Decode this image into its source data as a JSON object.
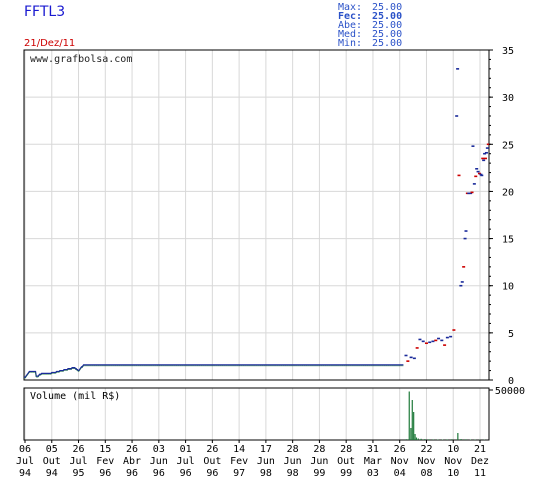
{
  "header": {
    "ticker": "FFTL3",
    "date": "21/Dez/11",
    "stats": [
      {
        "label": "Max:",
        "value": "25.00",
        "bold": false
      },
      {
        "label": "Fec:",
        "value": "25.00",
        "bold": true
      },
      {
        "label": "Abe:",
        "value": "25.00",
        "bold": false
      },
      {
        "label": "Med:",
        "value": "25.00",
        "bold": false
      },
      {
        "label": "Min:",
        "value": "25.00",
        "bold": false
      }
    ]
  },
  "watermark": "www.grafbolsa.com",
  "colors": {
    "price": "#1a2a9a",
    "price_alt": "#1e7a3a",
    "up_tick": "#cc0000",
    "volume": "#1e7a3a",
    "grid": "#d8d8d8"
  },
  "chart_data": [
    {
      "type": "line",
      "title": "",
      "ylim": [
        0,
        35
      ],
      "yticks": [
        "0",
        "5",
        "10",
        "15",
        "20",
        "25",
        "30",
        "35"
      ],
      "x_labels": [
        {
          "day": "06",
          "mon": "Jul",
          "yr": "94"
        },
        {
          "day": "05",
          "mon": "Out",
          "yr": "94"
        },
        {
          "day": "26",
          "mon": "Jul",
          "yr": "95"
        },
        {
          "day": "15",
          "mon": "Fev",
          "yr": "96"
        },
        {
          "day": "26",
          "mon": "Abr",
          "yr": "96"
        },
        {
          "day": "03",
          "mon": "Jun",
          "yr": "96"
        },
        {
          "day": "01",
          "mon": "Jul",
          "yr": "96"
        },
        {
          "day": "26",
          "mon": "Out",
          "yr": "96"
        },
        {
          "day": "14",
          "mon": "Fev",
          "yr": "97"
        },
        {
          "day": "17",
          "mon": "Jun",
          "yr": "98"
        },
        {
          "day": "28",
          "mon": "Jun",
          "yr": "98"
        },
        {
          "day": "28",
          "mon": "Jun",
          "yr": "99"
        },
        {
          "day": "28",
          "mon": "Out",
          "yr": "99"
        },
        {
          "day": "31",
          "mon": "Mar",
          "yr": "03"
        },
        {
          "day": "26",
          "mon": "Nov",
          "yr": "04"
        },
        {
          "day": "22",
          "mon": "Nov",
          "yr": "08"
        },
        {
          "day": "10",
          "mon": "Nov",
          "yr": "10"
        },
        {
          "day": "21",
          "mon": "Dez",
          "yr": "11"
        }
      ],
      "series": [
        {
          "values": [
            0.3,
            0.3,
            0.3,
            0.4,
            0.5,
            0.6,
            0.7,
            0.8,
            0.9,
            0.9,
            0.9,
            0.9,
            0.9,
            0.9,
            0.9,
            0.9,
            0.9,
            0.9,
            0.4,
            0.4,
            0.4,
            0.4,
            0.5,
            0.6,
            0.6,
            0.6,
            0.7,
            0.7,
            0.7,
            0.7,
            0.7,
            0.7,
            0.7,
            0.7,
            0.7,
            0.7,
            0.7,
            0.7,
            0.7,
            0.7,
            0.7,
            0.8,
            0.8,
            0.8,
            0.8,
            0.8,
            0.8,
            0.8,
            0.9,
            0.9,
            0.9,
            0.9,
            0.9,
            1.0,
            1.0,
            1.0,
            1.0,
            1.0,
            1.0,
            1.1,
            1.1,
            1.1,
            1.1,
            1.1,
            1.1,
            1.2,
            1.2,
            1.2,
            1.2,
            1.2,
            1.2,
            1.3,
            1.3,
            1.3,
            1.3,
            1.3,
            1.2,
            1.2,
            1.1,
            1.1,
            1.0,
            1.0,
            1.1,
            1.2,
            1.3,
            1.4,
            1.4,
            1.5,
            1.6,
            1.6,
            1.6,
            1.6,
            1.6,
            1.6,
            1.6,
            1.6,
            1.6,
            1.6,
            1.6,
            1.6,
            1.6,
            1.6,
            1.6,
            1.6,
            1.6,
            1.6,
            1.6,
            1.6,
            1.6,
            1.6,
            1.6,
            1.6,
            1.6,
            1.6,
            1.6,
            1.6,
            1.6,
            1.6,
            1.6,
            1.6,
            1.6,
            1.6,
            1.6,
            1.6,
            1.6,
            1.6,
            1.6,
            1.6,
            1.6,
            1.6,
            1.6,
            1.6,
            1.6,
            1.6,
            1.6,
            1.6,
            1.6,
            1.6,
            1.6,
            1.6,
            1.6,
            1.6,
            1.6,
            1.6,
            1.6,
            1.6,
            1.6,
            1.6,
            1.6,
            1.6,
            1.6,
            1.6,
            1.6,
            1.6,
            1.6,
            1.6,
            1.6,
            1.6,
            1.6,
            1.6,
            1.6,
            1.6,
            1.6,
            1.6,
            1.6,
            1.6,
            1.6,
            1.6,
            1.6,
            1.6,
            1.6,
            1.6,
            1.6,
            1.6,
            1.6,
            1.6,
            1.6,
            1.6,
            1.6,
            1.6,
            1.6,
            1.6,
            1.6,
            1.6,
            1.6,
            1.6,
            1.6,
            1.6,
            1.6,
            1.6,
            1.6,
            1.6,
            1.6,
            1.6,
            1.6,
            1.6,
            1.6,
            1.6,
            1.6,
            1.6,
            1.6,
            1.6,
            1.6,
            1.6,
            1.6,
            1.6,
            1.6,
            1.6,
            1.6,
            1.6,
            1.6,
            1.6,
            1.6,
            1.6,
            1.6,
            1.6,
            1.6,
            1.6,
            1.6,
            1.6,
            1.6,
            1.6,
            1.6,
            1.6,
            1.6,
            1.6,
            1.6,
            1.6,
            1.6,
            1.6,
            1.6,
            1.6,
            1.6,
            1.6,
            1.6,
            1.6,
            1.6,
            1.6,
            1.6,
            1.6,
            1.6,
            1.6,
            1.6,
            1.6,
            1.6,
            1.6,
            1.6,
            1.6,
            1.6,
            1.6,
            1.6,
            1.6,
            1.6,
            1.6,
            1.6,
            1.6,
            1.6,
            1.6,
            1.6,
            1.6,
            1.6,
            1.6,
            1.6,
            1.6,
            1.6,
            1.6,
            1.6,
            1.6,
            1.6,
            1.6,
            1.6,
            1.6,
            1.6,
            1.6,
            1.6,
            1.6,
            1.6,
            1.6,
            1.6,
            1.6,
            1.6,
            1.6,
            1.6,
            1.6,
            1.6,
            1.6,
            1.6,
            1.6,
            1.6,
            1.6,
            1.6,
            1.6,
            1.6,
            1.6,
            1.6,
            1.6,
            1.6,
            1.6,
            1.6,
            1.6,
            1.6,
            1.6,
            1.6,
            1.6,
            1.6,
            1.6,
            1.6,
            1.6,
            1.6,
            1.6,
            1.6,
            1.6,
            1.6,
            1.6,
            1.6,
            1.6,
            1.6,
            1.6,
            1.6,
            1.6,
            1.6,
            1.6,
            1.6,
            1.6,
            1.6,
            1.6,
            1.6,
            1.6,
            1.6,
            1.6,
            1.6,
            1.6,
            1.6,
            1.6,
            1.6,
            1.6,
            1.6,
            1.6,
            1.6,
            1.6,
            1.6,
            1.6,
            1.6,
            1.6,
            1.6,
            1.6,
            1.6,
            1.6,
            1.6,
            1.6,
            1.6,
            1.6,
            1.6,
            1.6,
            1.6,
            1.6,
            1.6,
            1.6,
            1.6,
            1.6,
            1.6,
            1.6,
            1.6,
            1.6,
            1.6,
            1.6,
            1.6,
            1.6,
            1.6,
            1.6,
            1.6,
            1.6,
            1.6,
            1.6,
            1.6,
            1.6,
            1.6,
            1.6,
            1.6,
            1.6,
            1.6,
            1.6,
            1.6,
            1.6,
            1.6,
            1.6,
            1.6,
            1.6,
            1.6,
            1.6,
            1.6,
            1.6,
            1.6,
            1.6,
            1.6,
            1.6,
            1.6,
            1.6,
            1.6,
            1.6,
            1.6,
            1.6,
            1.6,
            1.6,
            1.6,
            1.6,
            1.6,
            1.6,
            1.6,
            1.6,
            1.6,
            1.6,
            1.6,
            1.6,
            1.6,
            1.6,
            1.6,
            1.6,
            1.6,
            1.6,
            1.6,
            1.6,
            1.6,
            1.6,
            1.6,
            1.6,
            1.6,
            1.6,
            1.6,
            1.6,
            1.6,
            1.6,
            1.6,
            1.6,
            1.6,
            1.6,
            1.6,
            1.6,
            1.6,
            1.6,
            1.6,
            1.6,
            1.6,
            1.6,
            1.6,
            1.6,
            1.6,
            1.6,
            1.6,
            1.6,
            1.6,
            1.6,
            1.6,
            1.6,
            1.6,
            1.6,
            1.6,
            1.6,
            1.6,
            1.6,
            1.6,
            1.6,
            1.6,
            1.6,
            1.6,
            1.6,
            1.6,
            1.6,
            1.6,
            1.6,
            1.6,
            1.6,
            1.6,
            1.6,
            1.6,
            1.6,
            1.6,
            1.6,
            1.6,
            1.6,
            1.6,
            1.6,
            1.6,
            1.6,
            1.6,
            1.6,
            1.6,
            1.6,
            1.6,
            1.6,
            1.6,
            1.6,
            1.6,
            1.6,
            1.6,
            1.6,
            1.6,
            1.6,
            1.6,
            1.6,
            1.6,
            1.6,
            1.6,
            1.6,
            1.6,
            1.6,
            1.6,
            1.6,
            1.6,
            1.6,
            1.6,
            1.6,
            1.6,
            1.6,
            1.6,
            1.6,
            1.6,
            1.6,
            1.6,
            1.6,
            1.6,
            1.6,
            1.6,
            1.6,
            1.6,
            1.6,
            1.6,
            1.6,
            1.6,
            1.6,
            1.6,
            1.6,
            1.6,
            1.6,
            1.6,
            1.6,
            1.6,
            1.6,
            1.6,
            1.6,
            1.6,
            1.6,
            1.6,
            1.6,
            1.6,
            1.6,
            1.6,
            1.6,
            1.6,
            1.6,
            1.6,
            1.6,
            1.6,
            1.6,
            1.6,
            1.6,
            1.6,
            1.6,
            1.6,
            1.6,
            1.6
          ]
        }
      ],
      "markers": [
        {
          "i": 0.8215,
          "v": 2.6
        },
        {
          "i": 0.8255,
          "v": 2.0
        },
        {
          "i": 0.8325,
          "v": 2.4
        },
        {
          "i": 0.8395,
          "v": 2.3
        },
        {
          "i": 0.8455,
          "v": 3.4
        },
        {
          "i": 0.8515,
          "v": 4.3
        },
        {
          "i": 0.8585,
          "v": 4.1
        },
        {
          "i": 0.8655,
          "v": 3.9
        },
        {
          "i": 0.8725,
          "v": 4.0
        },
        {
          "i": 0.8795,
          "v": 4.1
        },
        {
          "i": 0.8855,
          "v": 4.2
        },
        {
          "i": 0.8915,
          "v": 4.4
        },
        {
          "i": 0.8985,
          "v": 4.2
        },
        {
          "i": 0.9045,
          "v": 3.7
        },
        {
          "i": 0.9105,
          "v": 4.5
        },
        {
          "i": 0.9175,
          "v": 4.6
        },
        {
          "i": 0.9245,
          "v": 5.3
        },
        {
          "i": 0.9305,
          "v": 28.0
        },
        {
          "i": 0.9325,
          "v": 33.0
        },
        {
          "i": 0.9355,
          "v": 21.7
        },
        {
          "i": 0.9395,
          "v": 10.0
        },
        {
          "i": 0.9425,
          "v": 10.4
        },
        {
          "i": 0.9455,
          "v": 12.0
        },
        {
          "i": 0.9485,
          "v": 15.0
        },
        {
          "i": 0.9505,
          "v": 15.8
        },
        {
          "i": 0.9535,
          "v": 19.8
        },
        {
          "i": 0.9565,
          "v": 19.8
        },
        {
          "i": 0.9605,
          "v": 19.8
        },
        {
          "i": 0.9635,
          "v": 19.9
        },
        {
          "i": 0.9655,
          "v": 24.8
        },
        {
          "i": 0.9685,
          "v": 20.8
        },
        {
          "i": 0.9715,
          "v": 21.6
        },
        {
          "i": 0.9735,
          "v": 22.4
        },
        {
          "i": 0.9765,
          "v": 22.1
        },
        {
          "i": 0.9795,
          "v": 21.9
        },
        {
          "i": 0.9825,
          "v": 21.8
        },
        {
          "i": 0.9845,
          "v": 21.7
        },
        {
          "i": 0.9865,
          "v": 23.5
        },
        {
          "i": 0.9885,
          "v": 23.3
        },
        {
          "i": 0.9905,
          "v": 24.0
        },
        {
          "i": 0.9925,
          "v": 23.5
        },
        {
          "i": 0.9945,
          "v": 24.1
        },
        {
          "i": 0.9965,
          "v": 24.6
        },
        {
          "i": 0.9985,
          "v": 25.0
        }
      ]
    },
    {
      "type": "bar",
      "title": "Volume (mil R$)",
      "ylim": [
        0,
        50000
      ],
      "yticks": [
        "50000"
      ],
      "bars": [
        {
          "i": 0.8225,
          "v": 800
        },
        {
          "i": 0.8285,
          "v": 48500
        },
        {
          "i": 0.832,
          "v": 12000
        },
        {
          "i": 0.835,
          "v": 40000
        },
        {
          "i": 0.838,
          "v": 28000
        },
        {
          "i": 0.841,
          "v": 6000
        },
        {
          "i": 0.844,
          "v": 2500
        },
        {
          "i": 0.848,
          "v": 1500
        },
        {
          "i": 0.854,
          "v": 1200
        },
        {
          "i": 0.862,
          "v": 900
        },
        {
          "i": 0.87,
          "v": 700
        },
        {
          "i": 0.88,
          "v": 600
        },
        {
          "i": 0.89,
          "v": 500
        },
        {
          "i": 0.9,
          "v": 500
        },
        {
          "i": 0.91,
          "v": 600
        },
        {
          "i": 0.92,
          "v": 800
        },
        {
          "i": 0.933,
          "v": 7000
        },
        {
          "i": 0.94,
          "v": 900
        },
        {
          "i": 0.95,
          "v": 700
        },
        {
          "i": 0.96,
          "v": 500
        },
        {
          "i": 0.97,
          "v": 400
        },
        {
          "i": 0.98,
          "v": 300
        },
        {
          "i": 0.99,
          "v": 300
        }
      ]
    }
  ]
}
